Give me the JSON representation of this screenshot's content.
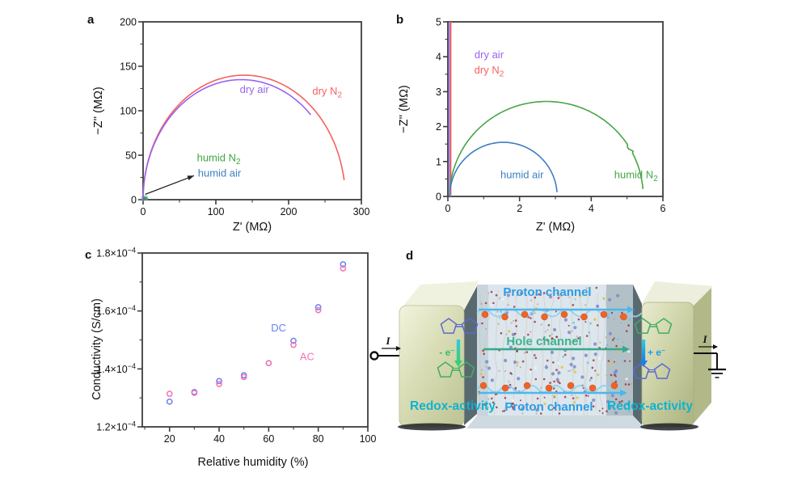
{
  "figure": {
    "panel_letters": [
      "a",
      "b",
      "c",
      "d"
    ],
    "background": "#ffffff"
  },
  "chart_data": [
    {
      "panel": "a",
      "type": "line",
      "name": "nyquist-full-range",
      "xlabel": "Z' (MΩ)",
      "ylabel": "−Z'' (MΩ)",
      "xlim": [
        0,
        300
      ],
      "ylim": [
        0,
        200
      ],
      "xticks": [
        0,
        100,
        200,
        300
      ],
      "yticks": [
        0,
        50,
        100,
        150,
        200
      ],
      "x_minor_step": 50,
      "y_minor_step": 25,
      "series": [
        {
          "name": "dry N2",
          "label_text": "dry N",
          "label_sub": "2",
          "color": "#f4635e",
          "shape": "semicircle",
          "start": 0,
          "end": 278,
          "peak": 140,
          "end_angle_deg": 9,
          "label_pos": [
            253,
            118
          ]
        },
        {
          "name": "dry air",
          "label_text": "dry air",
          "label_sub": "",
          "color": "#9a63f0",
          "shape": "semicircle",
          "start": 0,
          "end": 270,
          "peak": 135,
          "end_angle_deg": 45,
          "label_pos": [
            153,
            120
          ]
        },
        {
          "name": "humid N2",
          "label_text": "humid N",
          "label_sub": "2",
          "color": "#3fa53f",
          "shape": "semicircle",
          "start": 0,
          "end": 5.5,
          "peak": 2.7,
          "end_angle_deg": 3,
          "label_pos": [
            104,
            43
          ]
        },
        {
          "name": "humid air",
          "label_text": "humid air",
          "label_sub": "",
          "color": "#3e7fc1",
          "shape": "semicircle",
          "start": 0,
          "end": 3.1,
          "peak": 1.55,
          "end_angle_deg": 3,
          "label_pos": [
            105,
            26
          ]
        }
      ],
      "annotation_arrow": {
        "from": [
          3,
          6
        ],
        "to": [
          70,
          27
        ]
      },
      "origin_cluster": {
        "x": 2,
        "y": 1
      }
    },
    {
      "panel": "b",
      "type": "line",
      "name": "nyquist-zoom",
      "xlabel": "Z' (MΩ)",
      "ylabel": "−Z'' (MΩ)",
      "xlim": [
        0,
        6
      ],
      "ylim": [
        0,
        5
      ],
      "xticks": [
        0,
        2,
        4,
        6
      ],
      "yticks": [
        0,
        1,
        2,
        3,
        4,
        5
      ],
      "x_minor_step": 1,
      "y_minor_step": 0.5,
      "series": [
        {
          "name": "dry air",
          "label_text": "dry air",
          "label_sub": "",
          "color": "#9a63f0",
          "shape": "vline",
          "x": 0.05,
          "y0": 0,
          "y1": 5,
          "label_pos": [
            1.15,
            3.96
          ]
        },
        {
          "name": "dry N2",
          "label_text": "dry N",
          "label_sub": "2",
          "color": "#f4635e",
          "shape": "vline",
          "x": 0.08,
          "y0": 0,
          "y1": 5,
          "label_pos": [
            1.15,
            3.52
          ]
        },
        {
          "name": "humid N2",
          "label_text": "humid N",
          "label_sub": "2",
          "color": "#46a546",
          "shape": "semicircle",
          "start": 0.05,
          "end": 5.45,
          "peak": 2.72,
          "end_angle_deg": 4,
          "notch": true,
          "label_pos": [
            5.25,
            0.52
          ]
        },
        {
          "name": "humid air",
          "label_text": "humid air",
          "label_sub": "",
          "color": "#3e7fc1",
          "shape": "semicircle",
          "start": 0.05,
          "end": 3.05,
          "peak": 1.55,
          "end_angle_deg": 4,
          "label_pos": [
            2.07,
            0.52
          ]
        }
      ]
    },
    {
      "panel": "c",
      "type": "scatter",
      "name": "conductivity-vs-humidity",
      "xlabel": "Relative humidity (%)",
      "ylabel": "Conductivity (S/cm)",
      "xlim": [
        9,
        100
      ],
      "ylim": [
        1.2,
        1.8
      ],
      "y_scale_exponent": "−4",
      "y_tick_times": "×10",
      "xticks": [
        20,
        40,
        60,
        80,
        100
      ],
      "yticks": [
        1.2,
        1.4,
        1.6,
        1.8
      ],
      "x_minor_step": 10,
      "y_minor_step": 0.1,
      "series": [
        {
          "name": "DC",
          "label_text": "DC",
          "label_sub": "",
          "color": "#6b7ff2",
          "shape": "points",
          "points": [
            [
              20,
              1.287
            ],
            [
              30,
              1.32
            ],
            [
              40,
              1.358
            ],
            [
              50,
              1.378
            ],
            [
              60,
              1.42
            ],
            [
              70,
              1.497
            ],
            [
              80,
              1.613
            ],
            [
              90,
              1.761
            ]
          ],
          "label_pos": [
            64,
            1.53
          ]
        },
        {
          "name": "AC",
          "label_text": "AC",
          "label_sub": "",
          "color": "#f573b5",
          "shape": "points",
          "points": [
            [
              20,
              1.314
            ],
            [
              30,
              1.317
            ],
            [
              40,
              1.348
            ],
            [
              50,
              1.372
            ],
            [
              60,
              1.42
            ],
            [
              70,
              1.483
            ],
            [
              80,
              1.603
            ],
            [
              90,
              1.747
            ]
          ],
          "label_pos": [
            75.5,
            1.43
          ]
        }
      ]
    }
  ],
  "schematic": {
    "panel": "d",
    "labels": {
      "proton_channel_top": "Proton channel",
      "hole_channel": "Hole channel",
      "proton_channel_bottom": "Proton channel",
      "redox_left": "Redox-activity",
      "redox_right": "Redox-activity",
      "electron_left_pre": "- e",
      "electron_left_sup": "−",
      "electron_right_pre": "+ e",
      "electron_right_sup": "−",
      "current_left": "I",
      "current_right": "I"
    },
    "colors": {
      "proton_label": "#2e9be6",
      "hole_label": "#3cb58f",
      "redox_label": "#0fb3cf",
      "electron_left": "#2ebf6e",
      "electron_right": "#1d9fe8",
      "proton_arrow": "#4fb6ea",
      "hole_arrow": "#36a98c",
      "wave": "#8ed2f2",
      "electrode_light": "#f0f2e0",
      "electrode_mid": "#d7dbb3",
      "electrode_dark": "#b2b887",
      "slab": "#dce6ec",
      "slab_shade": "#4b5c64",
      "orange_dot": "#ef6328",
      "ring_blue": "#5a6ad0",
      "ring_green": "#3fae62"
    }
  }
}
